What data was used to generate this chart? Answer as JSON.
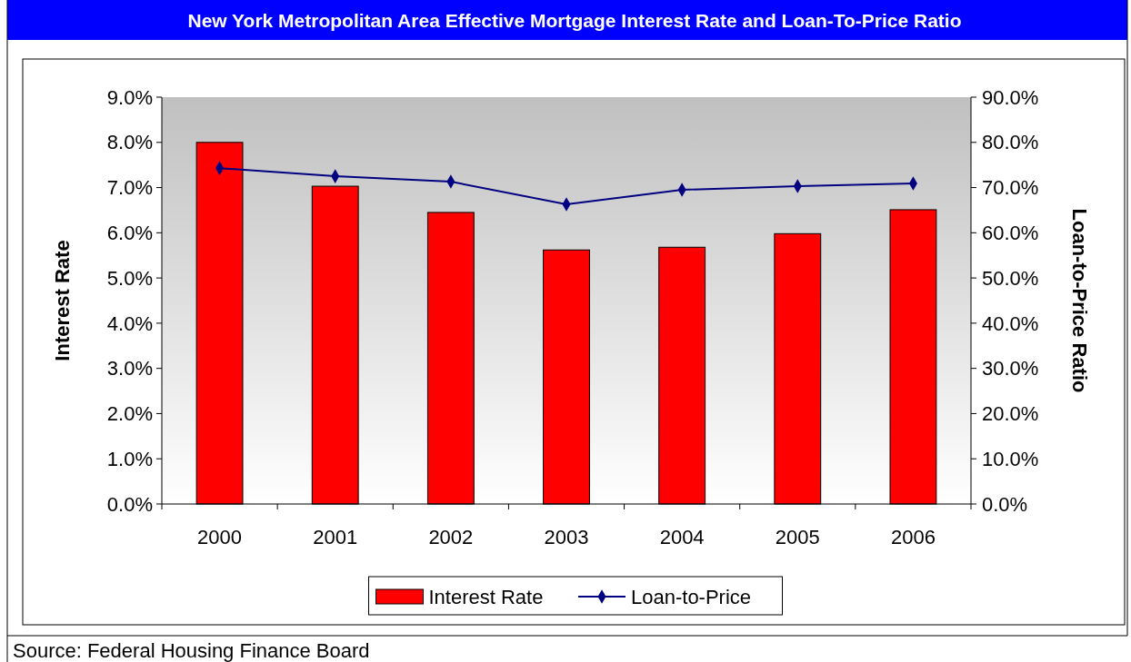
{
  "chart_data": {
    "type": "bar",
    "title": "New York Metropolitan Area Effective Mortgage Interest Rate and Loan-To-Price Ratio",
    "ylabel": "Interest Rate",
    "y2label": "Loan-to-Price Ratio",
    "annotations": [
      "Source: Federal Housing Finance Board"
    ],
    "categories": [
      "2000",
      "2001",
      "2002",
      "2003",
      "2004",
      "2005",
      "2006"
    ],
    "series": [
      {
        "name": "Interest Rate",
        "color": "#ff0000",
        "values": [
          8.0,
          7.03,
          6.45,
          5.62,
          5.68,
          5.98,
          6.51
        ]
      },
      {
        "name": "Loan-to-Price",
        "type": "line",
        "axis": "y2",
        "color": "#000080",
        "marker": "diamond",
        "values": [
          74.3,
          72.5,
          71.3,
          66.3,
          69.5,
          70.3,
          70.9
        ]
      }
    ],
    "ylim": [
      0,
      9
    ],
    "yticks": [
      {
        "value": 0,
        "label": "0.0%"
      },
      {
        "value": 1,
        "label": "1.0%"
      },
      {
        "value": 2,
        "label": "2.0%"
      },
      {
        "value": 3,
        "label": "3.0%"
      },
      {
        "value": 4,
        "label": "4.0%"
      },
      {
        "value": 5,
        "label": "5.0%"
      },
      {
        "value": 6,
        "label": "6.0%"
      },
      {
        "value": 7,
        "label": "7.0%"
      },
      {
        "value": 8,
        "label": "8.0%"
      },
      {
        "value": 9,
        "label": "9.0%"
      }
    ],
    "y2lim": [
      0,
      90
    ],
    "y2ticks": [
      {
        "value": 0,
        "label": "0.0%"
      },
      {
        "value": 10,
        "label": "10.0%"
      },
      {
        "value": 20,
        "label": "20.0%"
      },
      {
        "value": 30,
        "label": "30.0%"
      },
      {
        "value": 40,
        "label": "40.0%"
      },
      {
        "value": 50,
        "label": "50.0%"
      },
      {
        "value": 60,
        "label": "60.0%"
      },
      {
        "value": 70,
        "label": "70.0%"
      },
      {
        "value": 80,
        "label": "80.0%"
      },
      {
        "value": 90,
        "label": "90.0%"
      }
    ],
    "legend": "bottom",
    "grid": false
  }
}
